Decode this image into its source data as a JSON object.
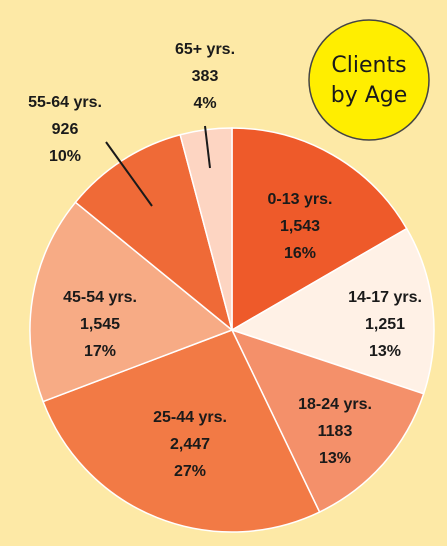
{
  "chart_data": {
    "type": "pie",
    "title": [
      "Clients",
      "by Age"
    ],
    "categories": [
      "0-13 yrs.",
      "14-17 yrs.",
      "18-24 yrs.",
      "25-44 yrs.",
      "45-54 yrs.",
      "55-64 yrs.",
      "65+ yrs."
    ],
    "values": [
      1543,
      1251,
      1183,
      2447,
      1545,
      926,
      383
    ],
    "value_labels": [
      "1,543",
      "1,251",
      "1183",
      "2,447",
      "1,545",
      "926",
      "383"
    ],
    "percent_labels": [
      "16%",
      "13%",
      "13%",
      "27%",
      "17%",
      "10%",
      "4%"
    ],
    "colors": [
      "#ee5a2a",
      "#fff1e6",
      "#f4906a",
      "#f27a45",
      "#f7ab85",
      "#ef6a37",
      "#fdd5c2"
    ]
  }
}
